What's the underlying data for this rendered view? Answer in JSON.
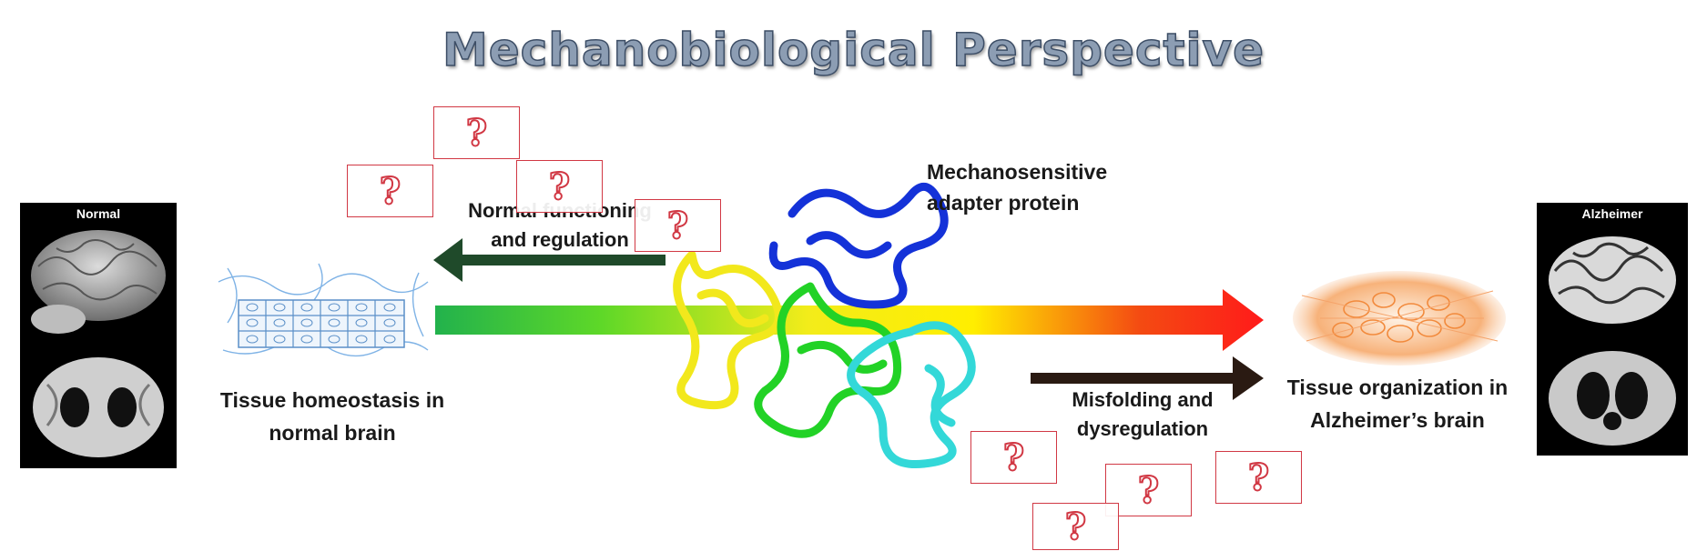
{
  "title": "Mechanobiological Perspective",
  "normal_panel": {
    "caption": "Normal"
  },
  "alzheimer_panel": {
    "caption": "Alzheimer"
  },
  "left_tissue": {
    "label_line1": "Tissue homeostasis in",
    "label_line2": "normal brain"
  },
  "right_tissue": {
    "label_line1": "Tissue organization in",
    "label_line2": "Alzheimer’s brain"
  },
  "protein": {
    "label_line1": "Mechanosensitive",
    "label_line2": "adapter protein"
  },
  "left_arrow": {
    "label_line1": "Normal functioning",
    "label_line2": "and regulation"
  },
  "right_arrow": {
    "label_line1": "Misfolding and",
    "label_line2": "dysregulation"
  },
  "question_mark": "?",
  "colors": {
    "gradient": [
      "#22b24c",
      "#5ed828",
      "#f3ec1a",
      "#ffee00",
      "#f44b12",
      "#ff1a1a"
    ],
    "left_arrow": "#1f4a2a",
    "right_arrow": "#2a1a12",
    "question_border": "#d13844"
  }
}
